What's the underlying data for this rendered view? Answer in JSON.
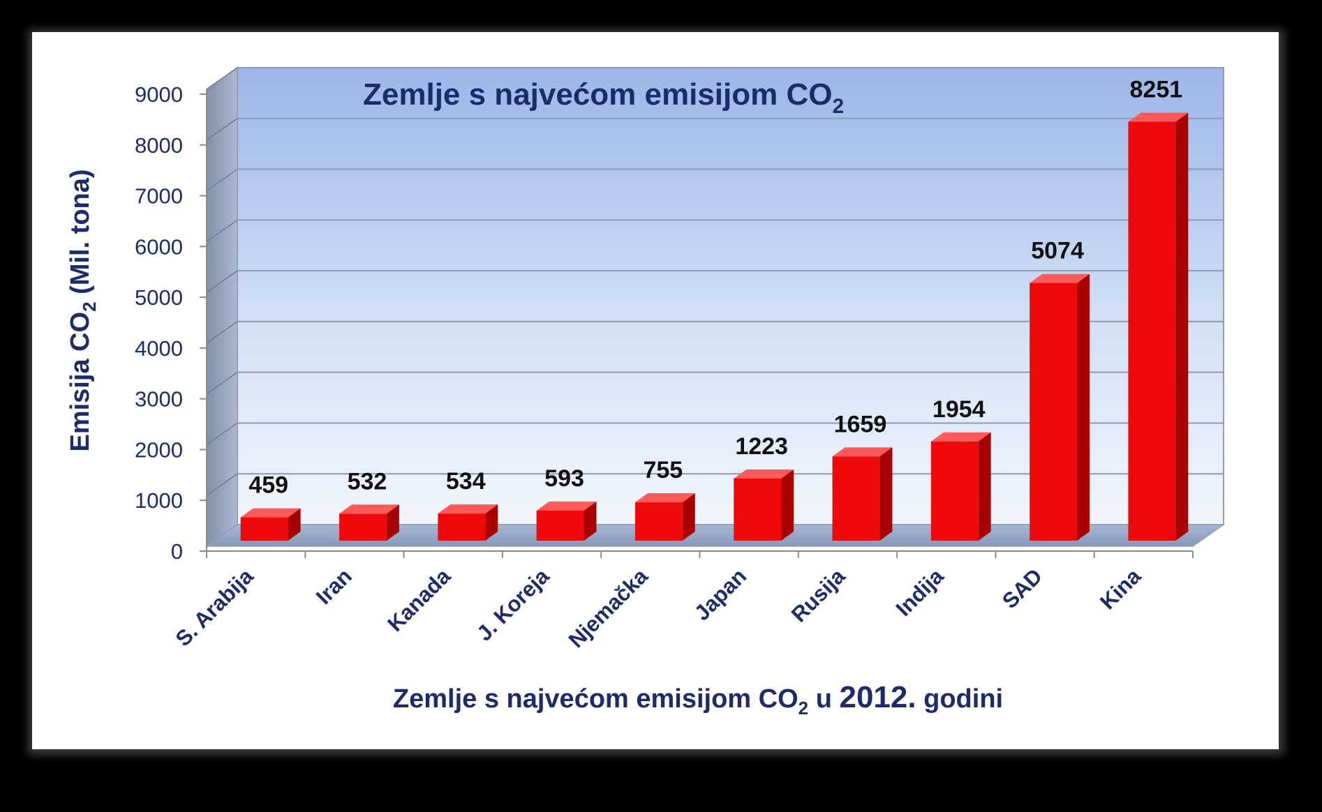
{
  "chart_data": {
    "type": "bar",
    "title": {
      "main": "Zemlje s najvećom emisijom CO",
      "sub": "2"
    },
    "ylabel": {
      "main": "Emisija CO",
      "sub": "2",
      "rest": " (Mil. tona)"
    },
    "xlabel": {
      "part1": "Zemlje s najvećom emisijom CO",
      "sub": "2",
      "part2": " u ",
      "year": "2012.",
      "part3": " godini"
    },
    "categories": [
      "S. Arabija",
      "Iran",
      "Kanada",
      "J. Koreja",
      "Njemačka",
      "Japan",
      "Rusija",
      "Indija",
      "SAD",
      "Kina"
    ],
    "values": [
      459,
      532,
      534,
      593,
      755,
      1223,
      1659,
      1954,
      5074,
      8251
    ],
    "ylim": [
      0,
      9000
    ],
    "yticks": [
      0,
      1000,
      2000,
      3000,
      4000,
      5000,
      6000,
      7000,
      8000,
      9000
    ],
    "grid": true,
    "colors": {
      "bar": "#ee0a0a",
      "bar_side": "#a80000",
      "bar_top": "#ff5a5a",
      "text": "#1c2c6a",
      "label": "#111111"
    }
  }
}
